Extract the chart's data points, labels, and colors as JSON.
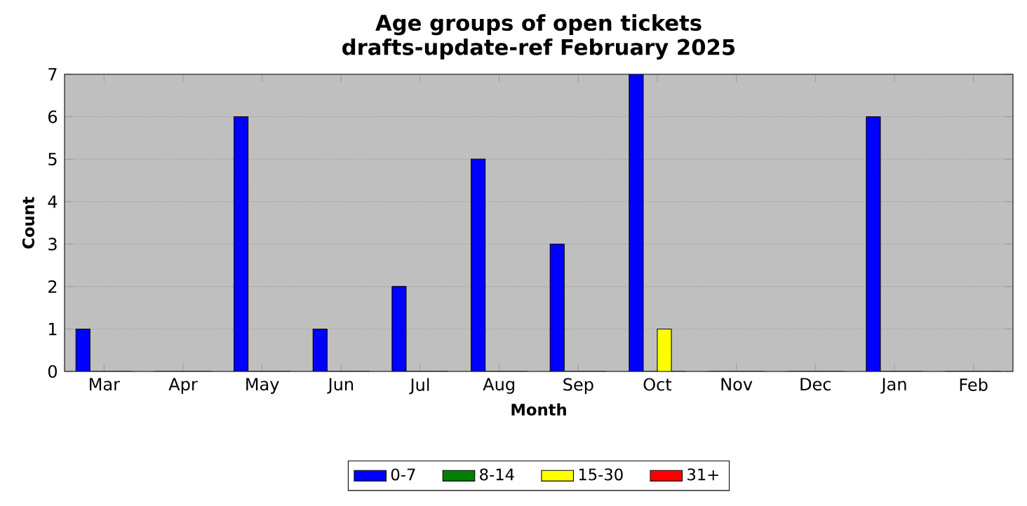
{
  "chart_data": {
    "type": "bar",
    "title": "Age groups of open tickets",
    "subtitle": "drafts-update-ref February 2025",
    "xlabel": "Month",
    "ylabel": "Count",
    "categories": [
      "Mar",
      "Apr",
      "May",
      "Jun",
      "Jul",
      "Aug",
      "Sep",
      "Oct",
      "Nov",
      "Dec",
      "Jan",
      "Feb"
    ],
    "series": [
      {
        "name": "0-7",
        "color": "#0000ff",
        "values": [
          1,
          0,
          6,
          1,
          2,
          5,
          3,
          7,
          0,
          0,
          6,
          0
        ]
      },
      {
        "name": "8-14",
        "color": "#008000",
        "values": [
          0,
          0,
          0,
          0,
          0,
          0,
          0,
          0,
          0,
          0,
          0,
          0
        ]
      },
      {
        "name": "15-30",
        "color": "#ffff00",
        "values": [
          0,
          0,
          0,
          0,
          0,
          0,
          0,
          1,
          0,
          0,
          0,
          0
        ]
      },
      {
        "name": "31+",
        "color": "#ff0000",
        "values": [
          0,
          0,
          0,
          0,
          0,
          0,
          0,
          0,
          0,
          0,
          0,
          0
        ]
      }
    ],
    "ylim": [
      0,
      7
    ],
    "yticks": [
      0,
      1,
      2,
      3,
      4,
      5,
      6,
      7
    ],
    "grid": "y",
    "legend": "bottom"
  }
}
